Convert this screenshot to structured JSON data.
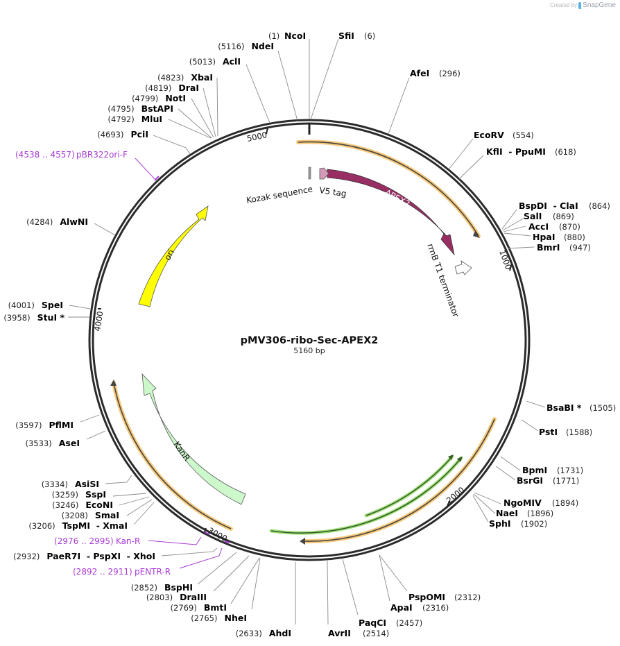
{
  "credit": {
    "prefix": "Created by",
    "brand": "SnapGene",
    "logo_color": "#5ab0e8"
  },
  "plasmid": {
    "name": "pMV306-ribo-Sec-APEX2",
    "length_label": "5160 bp",
    "length": 5160,
    "ticks": [
      {
        "pos": 1000,
        "label": "1000"
      },
      {
        "pos": 2000,
        "label": "2000"
      },
      {
        "pos": 3000,
        "label": "3000"
      },
      {
        "pos": 4000,
        "label": "4000"
      },
      {
        "pos": 5000,
        "label": "5000"
      }
    ]
  },
  "features": [
    {
      "name": "APEX2",
      "label": "APEX2",
      "type": "cds",
      "color": "#982e63"
    },
    {
      "name": "V5 tag",
      "label": "V5 tag",
      "type": "tag",
      "color": "#d49ab8"
    },
    {
      "name": "Kozak sequence",
      "label": "Kozak sequence",
      "type": "misc",
      "color": "#9a9a9a"
    },
    {
      "name": "rrnB T1 terminator",
      "label": "rrnB T1 terminator",
      "type": "terminator",
      "color": "#ffffff"
    },
    {
      "name": "ori",
      "label": "ori",
      "type": "origin",
      "color": "#ffff00"
    },
    {
      "name": "KanR",
      "label": "KanR",
      "type": "marker",
      "color": "#ccf8cc"
    }
  ],
  "colors": {
    "backbone": "#2b2b2b",
    "orf_orange": "#f7c97a",
    "orf_green": "#9fe27a",
    "site_line": "#8a8a8a",
    "primer": "#a83ad6"
  },
  "sites": [
    {
      "name": "NcoI",
      "pos": "(1)"
    },
    {
      "name": "SfiI",
      "pos": "(6)"
    },
    {
      "name": "AfeI",
      "pos": "(296)"
    },
    {
      "name": "EcoRV",
      "pos": "(554)"
    },
    {
      "name": "KflI  - PpuMI",
      "pos": "(618)"
    },
    {
      "name": "BspDI  - ClaI",
      "pos": "(864)"
    },
    {
      "name": "SalI",
      "pos": "(869)"
    },
    {
      "name": "AccI",
      "pos": "(870)"
    },
    {
      "name": "HpaI",
      "pos": "(880)"
    },
    {
      "name": "BmrI",
      "pos": "(947)"
    },
    {
      "name": "BsaBI *",
      "pos": "(1505)"
    },
    {
      "name": "PstI",
      "pos": "(1588)"
    },
    {
      "name": "BpmI",
      "pos": "(1731)"
    },
    {
      "name": "BsrGI",
      "pos": "(1771)"
    },
    {
      "name": "NgoMIV",
      "pos": "(1894)"
    },
    {
      "name": "NaeI",
      "pos": "(1896)"
    },
    {
      "name": "SphI",
      "pos": "(1902)"
    },
    {
      "name": "PspOMI",
      "pos": "(2312)"
    },
    {
      "name": "ApaI",
      "pos": "(2316)"
    },
    {
      "name": "PaqCI",
      "pos": "(2457)"
    },
    {
      "name": "AvrII",
      "pos": "(2514)"
    },
    {
      "name": "AhdI",
      "pos": "(2633)"
    },
    {
      "name": "NheI",
      "pos": "(2765)"
    },
    {
      "name": "BmtI",
      "pos": "(2769)"
    },
    {
      "name": "DraIII",
      "pos": "(2803)"
    },
    {
      "name": "BspHI",
      "pos": "(2852)"
    },
    {
      "name": "PaeR7I  - PspXI  - XhoI",
      "pos": "(2932)"
    },
    {
      "name": "TspMI  - XmaI",
      "pos": "(3206)"
    },
    {
      "name": "SmaI",
      "pos": "(3208)"
    },
    {
      "name": "EcoNI",
      "pos": "(3246)"
    },
    {
      "name": "SspI",
      "pos": "(3259)"
    },
    {
      "name": "AsiSI",
      "pos": "(3334)"
    },
    {
      "name": "AseI",
      "pos": "(3533)"
    },
    {
      "name": "PflMI",
      "pos": "(3597)"
    },
    {
      "name": "StuI *",
      "pos": "(3958)"
    },
    {
      "name": "SpeI",
      "pos": "(4001)"
    },
    {
      "name": "AlwNI",
      "pos": "(4284)"
    },
    {
      "name": "PciI",
      "pos": "(4693)"
    },
    {
      "name": "MluI",
      "pos": "(4792)"
    },
    {
      "name": "BstAPI",
      "pos": "(4795)"
    },
    {
      "name": "NotI",
      "pos": "(4799)"
    },
    {
      "name": "DraI",
      "pos": "(4819)"
    },
    {
      "name": "XbaI",
      "pos": "(4823)"
    },
    {
      "name": "AclI",
      "pos": "(5013)"
    },
    {
      "name": "NdeI",
      "pos": "(5116)"
    }
  ],
  "primers": [
    {
      "name": "pBR322ori-F",
      "range": "(4538 .. 4557)"
    },
    {
      "name": "Kan-R",
      "range": "(2976 .. 2995)"
    },
    {
      "name": "pENTR-R",
      "range": "(2892 .. 2911)"
    }
  ]
}
